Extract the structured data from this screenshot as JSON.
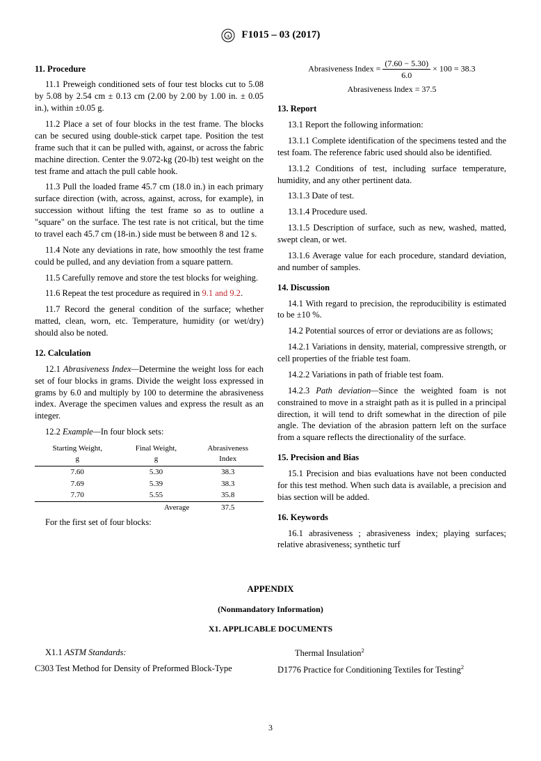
{
  "header": {
    "designation": "F1015 – 03 (2017)"
  },
  "left": {
    "s11": {
      "title": "11. Procedure",
      "p1": "11.1 Preweigh conditioned sets of four test blocks cut to 5.08 by 5.08 by 2.54 cm ± 0.13 cm (2.00 by 2.00 by 1.00 in. ± 0.05 in.), within ±0.05 g.",
      "p2": "11.2 Place a set of four blocks in the test frame. The blocks can be secured using double-stick carpet tape. Position the test frame such that it can be pulled with, against, or across the fabric machine direction. Center the 9.072-kg (20-lb) test weight on the test frame and attach the pull cable hook.",
      "p3": "11.3 Pull the loaded frame 45.7 cm (18.0 in.) in each primary surface direction (with, across, against, across, for example), in succession without lifting the test frame so as to outline a \"square\" on the surface. The test rate is not critical, but the time to travel each 45.7 cm (18-in.) side must be between 8 and 12 s.",
      "p4": "11.4 Note any deviations in rate, how smoothly the test frame could be pulled, and any deviation from a square pattern.",
      "p5": "11.5 Carefully remove and store the test blocks for weighing.",
      "p6a": "11.6 Repeat the test procedure as required in ",
      "p6b": "9.1 and 9.2",
      "p6c": ".",
      "p7": "11.7 Record the general condition of the surface; whether matted, clean, worn, etc. Temperature, humidity (or wet/dry) should also be noted."
    },
    "s12": {
      "title": "12. Calculation",
      "p1a": "12.1 ",
      "p1b": "Abrasiveness Index—",
      "p1c": "Determine the weight loss for each set of four blocks in grams. Divide the weight loss expressed in grams by 6.0 and multiply by 100 to determine the abrasiveness index. Average the specimen values and express the result as an integer.",
      "p2a": "12.2 ",
      "p2b": "Example—",
      "p2c": "In four block sets:",
      "table": {
        "headers": [
          "Starting Weight,\ng",
          "Final Weight,\ng",
          "Abrasiveness\nIndex"
        ],
        "rows": [
          [
            "7.60",
            "5.30",
            "38.3"
          ],
          [
            "7.69",
            "5.39",
            "38.3"
          ],
          [
            "7.70",
            "5.55",
            "35.8"
          ]
        ],
        "avg_label": "Average",
        "avg_value": "37.5"
      },
      "p3": "For the first set of four blocks:"
    }
  },
  "right": {
    "formula": {
      "label": "Abrasiveness Index =",
      "num": "(7.60 − 5.30)",
      "den": "6.0",
      "tail": "× 100 = 38.3",
      "line2": "Abrasiveness Index = 37.5"
    },
    "s13": {
      "title": "13. Report",
      "p1": "13.1 Report the following information:",
      "p2": "13.1.1 Complete identification of the specimens tested and the test foam. The reference fabric used should also be identified.",
      "p3": "13.1.2 Conditions of test, including surface temperature, humidity, and any other pertinent data.",
      "p4": "13.1.3 Date of test.",
      "p5": "13.1.4 Procedure used.",
      "p6": "13.1.5 Description of surface, such as new, washed, matted, swept clean, or wet.",
      "p7": "13.1.6 Average value for each procedure, standard deviation, and number of samples."
    },
    "s14": {
      "title": "14. Discussion",
      "p1": "14.1 With regard to precision, the reproducibility is estimated to be ±10 %.",
      "p2": "14.2 Potential sources of error or deviations are as follows;",
      "p3": "14.2.1 Variations in density, material, compressive strength, or cell properties of the friable test foam.",
      "p4": "14.2.2 Variations in path of friable test foam.",
      "p5a": "14.2.3 ",
      "p5b": "Path deviation—",
      "p5c": "Since the weighted foam is not constrained to move in a straight path as it is pulled in a principal direction, it will tend to drift somewhat in the direction of pile angle. The deviation of the abrasion pattern left on the surface from a square reflects the directionality of the surface."
    },
    "s15": {
      "title": "15. Precision and Bias",
      "p1": "15.1 Precision and bias evaluations have not been conducted for this test method. When such data is available, a precision and bias section will be added."
    },
    "s16": {
      "title": "16. Keywords",
      "p1": "16.1 abrasiveness ; abrasiveness index; playing surfaces; relative abrasiveness; synthetic turf"
    }
  },
  "appendix": {
    "title": "APPENDIX",
    "sub": "(Nonmandatory Information)",
    "sub2": "X1. APPLICABLE DOCUMENTS",
    "left": {
      "p1a": "X1.1 ",
      "p1b": "ASTM Standards:",
      "p2": "C303 Test Method for Density of Preformed Block-Type"
    },
    "right": {
      "p1": "Thermal Insulation",
      "p2": "D1776 Practice for Conditioning Textiles for Testing"
    }
  },
  "pagenum": "3"
}
